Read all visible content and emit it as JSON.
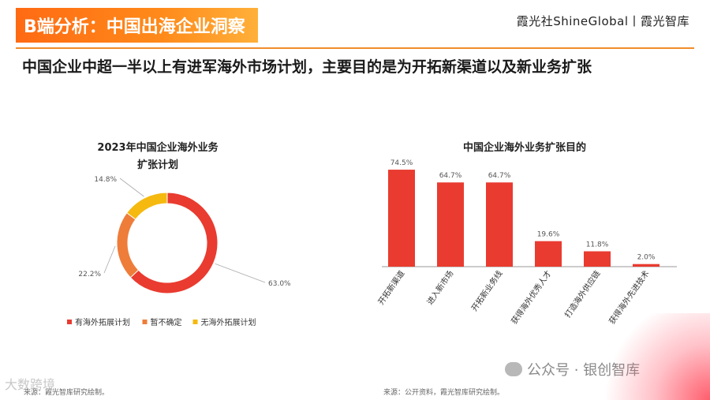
{
  "header": {
    "section_title": "B端分析：中国出海企业洞察",
    "brand": "霞光社ShineGlobal丨霞光智库",
    "subtitle": "中国企业中超一半以上有进军海外市场计划，主要目的是为开拓新渠道以及新业务扩张"
  },
  "colors": {
    "accent_orange": "#f08c2b",
    "red": "#e93b30",
    "orange": "#ee7d3a",
    "yellow": "#f5b90f"
  },
  "chart_data": [
    {
      "type": "pie",
      "variant": "donut",
      "title_line1": "2023年中国企业海外业务",
      "title_line2": "扩张计划",
      "slices": [
        {
          "label": "有海外拓展计划",
          "value": 63.0,
          "value_label": "63.0%",
          "color": "#e93b30"
        },
        {
          "label": "暂不确定",
          "value": 22.2,
          "value_label": "22.2%",
          "color": "#ee7d3a"
        },
        {
          "label": "无海外拓展计划",
          "value": 14.8,
          "value_label": "14.8%",
          "color": "#f5b90f"
        }
      ],
      "legend_position": "bottom"
    },
    {
      "type": "bar",
      "title": "中国企业海外业务扩张目的",
      "categories": [
        "开拓新渠道",
        "进入新市场",
        "开拓新业务线",
        "获得海外优秀人才",
        "打造海外供应链",
        "获得海外先进技术"
      ],
      "values": [
        74.5,
        64.7,
        64.7,
        19.6,
        11.8,
        2.0
      ],
      "value_labels": [
        "74.5%",
        "64.7%",
        "64.7%",
        "19.6%",
        "11.8%",
        "2.0%"
      ],
      "ylim": [
        0,
        80
      ],
      "grid": false,
      "color": "#e93b30"
    }
  ],
  "footer": {
    "source_left": "来源：霞光智库研究绘制。",
    "source_right": "来源：公开资料，霞光智库研究绘制。",
    "watermark": "公众号 · 银创智库",
    "watermark_left": "大数跨境"
  }
}
